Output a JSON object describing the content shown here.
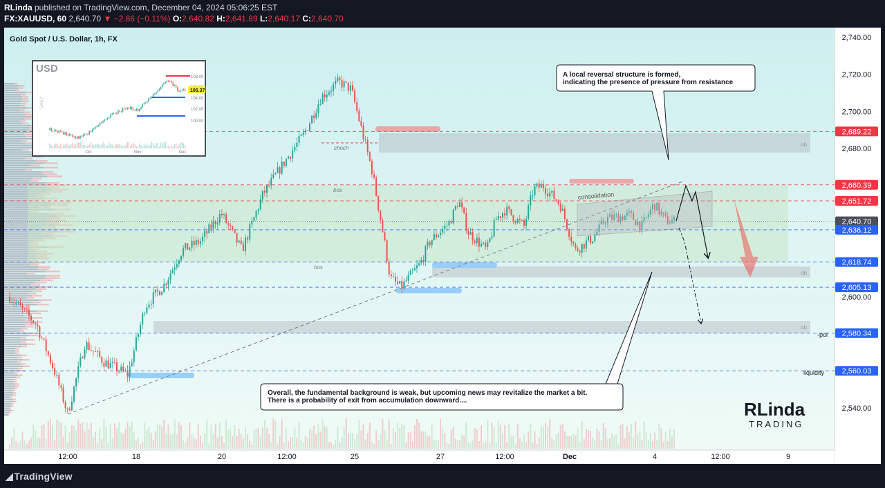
{
  "header": {
    "publisher": "RLinda",
    "published_text": " published on TradingView.com, December 04, 2024 05:06:25 EST",
    "symbol": "FX:XAUUSD, 60",
    "last": "2,640.70",
    "change": "▼ −2.86 (−0.11%)",
    "o_label": "O:",
    "o": "2,640.82",
    "h_label": "H:",
    "h": "2,641.89",
    "l_label": "L:",
    "l": "2,640.17",
    "c_label": "C:",
    "c": "2,640.70"
  },
  "chart_title": "Gold Spot / U.S. Dollar, 1h, FX",
  "footer_logo": "TradingView",
  "inset": {
    "title": "USD",
    "side_label": "DAILY",
    "y_ticks": [
      "108.00",
      "106.00",
      "104.00",
      "102.00",
      "100.00"
    ],
    "x_ticks": [
      "Oct",
      "Nov",
      "Dec"
    ],
    "price_tag": "106.37"
  },
  "annotations": {
    "callout_top": [
      "A local reversal structure is formed,",
      "indicating the presence of pressure from resistance"
    ],
    "callout_bottom": [
      "Overall, the fundamental background is weak, but upcoming news may revitalize the market a bit.",
      "There is a probability of exit from accumulation downward...."
    ],
    "choch": "choch",
    "bos_upper": "bos",
    "bos_lower": "bos",
    "consolidation": "consolidation",
    "ob": "ob",
    "poi": "-poi",
    "liquidity": "liquidity",
    "brand_line1": "RLinda",
    "brand_line2": "TRADING"
  },
  "colors": {
    "up": "#26a69a",
    "down": "#ef5350",
    "level_red": "#f23645",
    "level_blue": "#2962ff",
    "range_green": "#c8e6c9",
    "bg_mint": "#dff6f3",
    "ob_gray": "#b2b5be"
  },
  "chart_data": {
    "type": "candlestick",
    "title": "Gold Spot / U.S. Dollar, 1h, FX",
    "y_axis_ticks": [
      2740,
      2720,
      2700,
      2680,
      2600,
      2540
    ],
    "y_tick_labels": [
      "2,740.00",
      "2,720.00",
      "2,700.00",
      "2,680.00",
      "2,600.00",
      "2,540.00"
    ],
    "x_ticks": [
      "12:00",
      "18",
      "20",
      "12:00",
      "25",
      "27",
      "12:00",
      "Dec",
      "4",
      "12:00",
      "9"
    ],
    "price_levels": [
      {
        "value": 2689.22,
        "label": "2,689.22",
        "color": "red"
      },
      {
        "value": 2660.39,
        "label": "2,660.39",
        "color": "red"
      },
      {
        "value": 2651.72,
        "label": "2,651.72",
        "color": "red"
      },
      {
        "value": 2640.7,
        "label": "2,640.70",
        "color": "last"
      },
      {
        "value": 2636.12,
        "label": "2,636.12",
        "color": "blue"
      },
      {
        "value": 2618.74,
        "label": "2,618.74",
        "color": "blue"
      },
      {
        "value": 2605.13,
        "label": "2,605.13",
        "color": "blue"
      },
      {
        "value": 2580.34,
        "label": "2,580.34",
        "color": "blue"
      },
      {
        "value": 2560.03,
        "label": "2,560.03",
        "color": "blue"
      }
    ],
    "price_path": [
      [
        "Nov 14 00:00",
        2600
      ],
      [
        "Nov 14 06:00",
        2585
      ],
      [
        "Nov 14 10:00",
        2560
      ],
      [
        "Nov 14 13:00",
        2537
      ],
      [
        "Nov 15 00:00",
        2575
      ],
      [
        "Nov 15 12:00",
        2565
      ],
      [
        "Nov 17 18:00",
        2558
      ],
      [
        "Nov 18 06:00",
        2595
      ],
      [
        "Nov 18 18:00",
        2606
      ],
      [
        "Nov 19 06:00",
        2625
      ],
      [
        "Nov 19 18:00",
        2630
      ],
      [
        "Nov 20 06:00",
        2645
      ],
      [
        "Nov 20 18:00",
        2625
      ],
      [
        "Nov 21 06:00",
        2655
      ],
      [
        "Nov 21 18:00",
        2672
      ],
      [
        "Nov 22 06:00",
        2688
      ],
      [
        "Nov 22 12:00",
        2708
      ],
      [
        "Nov 22 18:00",
        2716
      ],
      [
        "Nov 24 18:00",
        2712
      ],
      [
        "Nov 25 03:00",
        2668
      ],
      [
        "Nov 25 08:00",
        2632
      ],
      [
        "Nov 25 14:00",
        2610
      ],
      [
        "Nov 26 00:00",
        2605
      ],
      [
        "Nov 26 12:00",
        2618
      ],
      [
        "Nov 26 18:00",
        2630
      ],
      [
        "Nov 27 06:00",
        2640
      ],
      [
        "Nov 27 12:00",
        2652
      ],
      [
        "Nov 27 18:00",
        2635
      ],
      [
        "Nov 28 06:00",
        2625
      ],
      [
        "Nov 28 12:00",
        2642
      ],
      [
        "Nov 28 18:00",
        2647
      ],
      [
        "Nov 29 06:00",
        2638
      ],
      [
        "Nov 29 12:00",
        2658
      ],
      [
        "Nov 29 18:00",
        2660
      ],
      [
        "Dec 01 18:00",
        2650
      ],
      [
        "Dec 02 03:00",
        2625
      ],
      [
        "Dec 02 12:00",
        2632
      ],
      [
        "Dec 02 18:00",
        2642
      ],
      [
        "Dec 03 06:00",
        2644
      ],
      [
        "Dec 03 12:00",
        2638
      ],
      [
        "Dec 03 18:00",
        2650
      ],
      [
        "Dec 04 00:00",
        2641
      ],
      [
        "Dec 04 05:00",
        2640.7
      ]
    ]
  }
}
